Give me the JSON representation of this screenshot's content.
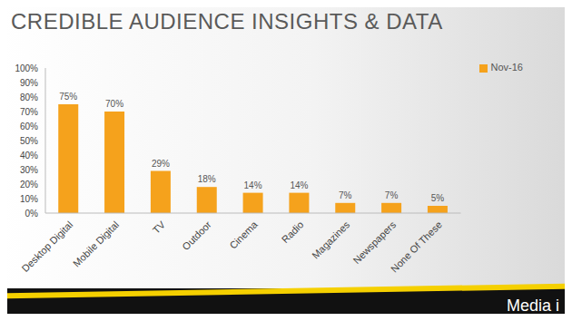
{
  "chart_data": {
    "type": "bar",
    "title": "CREDIBLE AUDIENCE INSIGHTS & DATA",
    "annotations": [
      "Media i"
    ],
    "categories": [
      "Desktop Digital",
      "Mobile Digital",
      "TV",
      "Outdoor",
      "Cinema",
      "Radio",
      "Magazines",
      "Newspapers",
      "None Of These"
    ],
    "series": [
      {
        "name": "Nov-16",
        "color": "#f5a21c",
        "values": [
          75,
          70,
          29,
          18,
          14,
          14,
          7,
          7,
          5
        ],
        "value_labels": [
          "75%",
          "70%",
          "29%",
          "18%",
          "14%",
          "14%",
          "7%",
          "7%",
          "5%"
        ]
      }
    ],
    "ylim": [
      0,
      100
    ],
    "yticks": [
      {
        "value": 0,
        "label": "0%"
      },
      {
        "value": 10,
        "label": "10%"
      },
      {
        "value": 20,
        "label": "20%"
      },
      {
        "value": 30,
        "label": "30%"
      },
      {
        "value": 40,
        "label": "40%"
      },
      {
        "value": 50,
        "label": "50%"
      },
      {
        "value": 60,
        "label": "60%"
      },
      {
        "value": 70,
        "label": "70%"
      },
      {
        "value": 80,
        "label": "80%"
      },
      {
        "value": 90,
        "label": "90%"
      },
      {
        "value": 100,
        "label": "100%"
      }
    ],
    "grid": false,
    "legend": "upper right",
    "data_labels": true
  }
}
